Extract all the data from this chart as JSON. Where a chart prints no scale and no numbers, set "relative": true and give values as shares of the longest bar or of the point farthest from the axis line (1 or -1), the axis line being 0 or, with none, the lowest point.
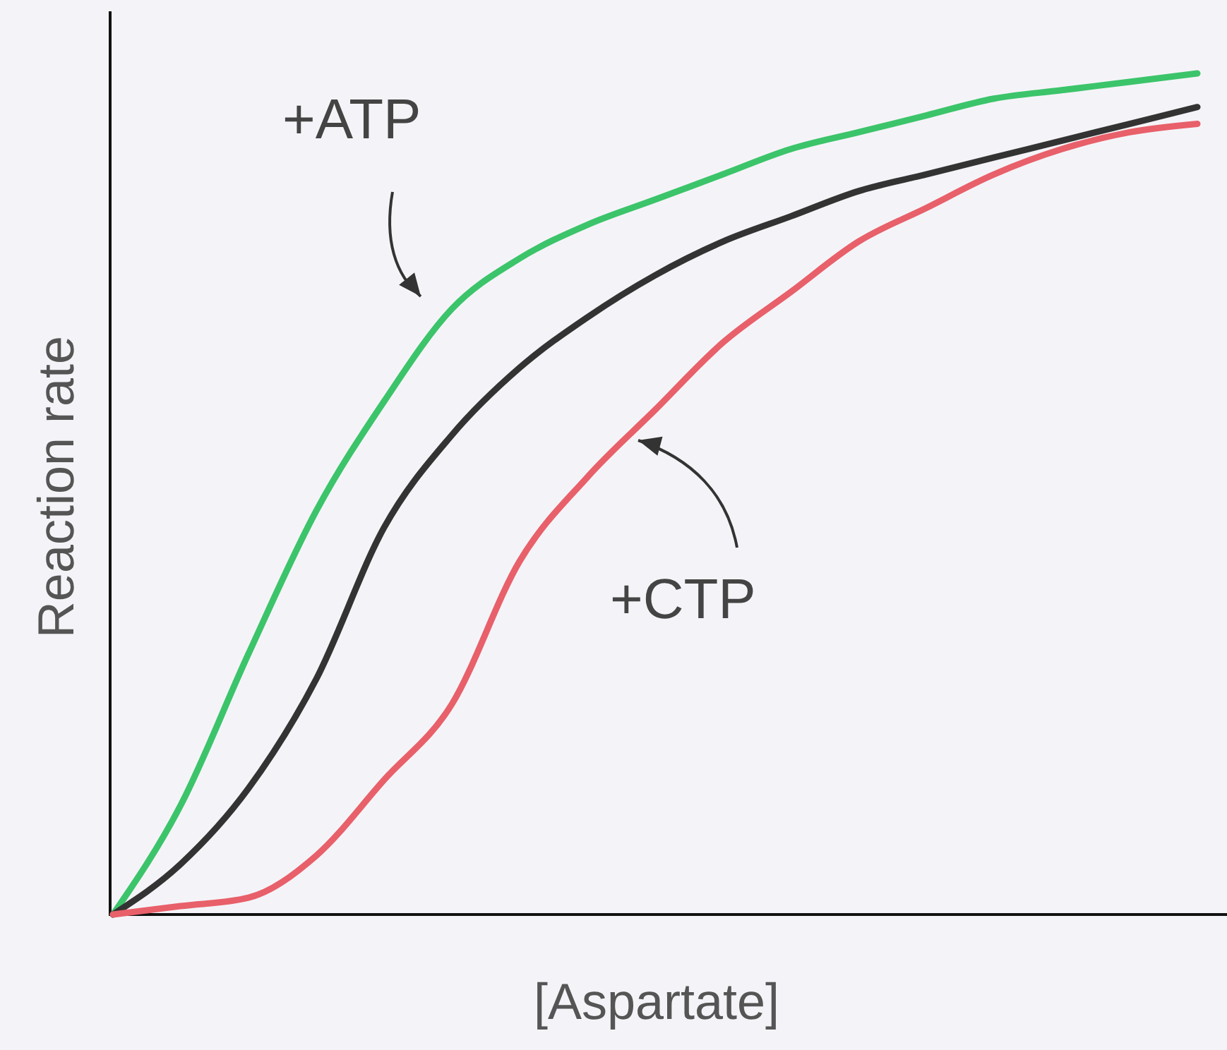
{
  "chart_data": {
    "type": "line",
    "relative": true,
    "xlabel": "[Aspartate]",
    "ylabel": "Reaction rate",
    "categories": [
      null,
      null,
      null,
      null,
      null,
      null,
      null,
      null,
      null,
      null,
      null,
      null,
      null,
      null,
      null,
      null,
      null
    ],
    "series": [
      {
        "color": "#3cc46a",
        "values": [
          0,
          0.13,
          0.31,
          0.48,
          0.61,
          0.72,
          0.78,
          0.82,
          0.85,
          0.88,
          0.91,
          0.93,
          0.95,
          0.97,
          0.98,
          0.99,
          1
        ]
      },
      {
        "color": "#333333",
        "values": [
          0,
          0.06,
          0.15,
          0.28,
          0.46,
          0.57,
          0.65,
          0.71,
          0.76,
          0.8,
          0.83,
          0.86,
          0.88,
          0.9,
          0.92,
          0.94,
          0.96
        ]
      },
      {
        "color": "#e8606a",
        "values": [
          0,
          0.01,
          0.02,
          0.07,
          0.16,
          0.25,
          0.42,
          0.52,
          0.6,
          0.68,
          0.74,
          0.8,
          0.84,
          0.88,
          0.91,
          0.93,
          0.94
        ]
      }
    ],
    "annotations": [
      "+ATP",
      "+CTP"
    ]
  }
}
